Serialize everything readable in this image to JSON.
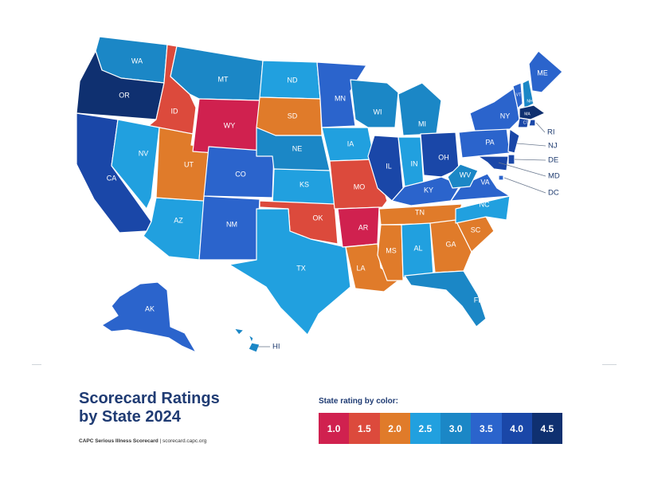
{
  "title": {
    "line1": "Scorecard Ratings",
    "line2": "by State 2024"
  },
  "footer": {
    "source_name": "CAPC Serious Illness Scorecard",
    "separator": " | ",
    "url": "scorecard.capc.org"
  },
  "legend": {
    "heading": "State rating by color:",
    "items": [
      {
        "label": "1.0",
        "color": "#d0214f"
      },
      {
        "label": "1.5",
        "color": "#dc4a3c"
      },
      {
        "label": "2.0",
        "color": "#e07b2a"
      },
      {
        "label": "2.5",
        "color": "#21a0df"
      },
      {
        "label": "3.0",
        "color": "#1b87c6"
      },
      {
        "label": "3.5",
        "color": "#2b64cc"
      },
      {
        "label": "4.0",
        "color": "#1a47a8"
      },
      {
        "label": "4.5",
        "color": "#0f3070"
      }
    ]
  },
  "states": [
    {
      "code": "WA",
      "rating": "3.0"
    },
    {
      "code": "OR",
      "rating": "4.5"
    },
    {
      "code": "CA",
      "rating": "4.0"
    },
    {
      "code": "ID",
      "rating": "1.5"
    },
    {
      "code": "NV",
      "rating": "2.5"
    },
    {
      "code": "AZ",
      "rating": "2.5"
    },
    {
      "code": "UT",
      "rating": "2.0"
    },
    {
      "code": "MT",
      "rating": "3.0"
    },
    {
      "code": "WY",
      "rating": "1.0"
    },
    {
      "code": "CO",
      "rating": "3.5"
    },
    {
      "code": "NM",
      "rating": "3.5"
    },
    {
      "code": "ND",
      "rating": "2.5"
    },
    {
      "code": "SD",
      "rating": "2.0"
    },
    {
      "code": "NE",
      "rating": "3.0"
    },
    {
      "code": "KS",
      "rating": "2.5"
    },
    {
      "code": "OK",
      "rating": "1.5"
    },
    {
      "code": "TX",
      "rating": "2.5"
    },
    {
      "code": "MN",
      "rating": "3.5"
    },
    {
      "code": "IA",
      "rating": "2.5"
    },
    {
      "code": "MO",
      "rating": "1.5"
    },
    {
      "code": "AR",
      "rating": "1.0"
    },
    {
      "code": "LA",
      "rating": "2.0"
    },
    {
      "code": "WI",
      "rating": "3.0"
    },
    {
      "code": "IL",
      "rating": "4.0"
    },
    {
      "code": "MI",
      "rating": "3.0"
    },
    {
      "code": "IN",
      "rating": "2.5"
    },
    {
      "code": "OH",
      "rating": "4.0"
    },
    {
      "code": "KY",
      "rating": "3.5"
    },
    {
      "code": "TN",
      "rating": "2.0"
    },
    {
      "code": "MS",
      "rating": "2.0"
    },
    {
      "code": "AL",
      "rating": "2.5"
    },
    {
      "code": "GA",
      "rating": "2.0"
    },
    {
      "code": "FL",
      "rating": "3.0"
    },
    {
      "code": "SC",
      "rating": "2.0"
    },
    {
      "code": "NC",
      "rating": "2.5"
    },
    {
      "code": "VA",
      "rating": "3.5"
    },
    {
      "code": "WV",
      "rating": "3.0"
    },
    {
      "code": "PA",
      "rating": "3.5"
    },
    {
      "code": "NY",
      "rating": "3.5"
    },
    {
      "code": "VT",
      "rating": "3.5"
    },
    {
      "code": "NH",
      "rating": "3.0"
    },
    {
      "code": "ME",
      "rating": "3.5"
    },
    {
      "code": "MA",
      "rating": "4.5"
    },
    {
      "code": "CT",
      "rating": "4.0"
    },
    {
      "code": "RI",
      "rating": "4.0"
    },
    {
      "code": "NJ",
      "rating": "4.0"
    },
    {
      "code": "DE",
      "rating": "4.0"
    },
    {
      "code": "MD",
      "rating": "4.0"
    },
    {
      "code": "DC",
      "rating": "3.5"
    },
    {
      "code": "AK",
      "rating": "3.5"
    },
    {
      "code": "HI",
      "rating": "3.0"
    }
  ]
}
